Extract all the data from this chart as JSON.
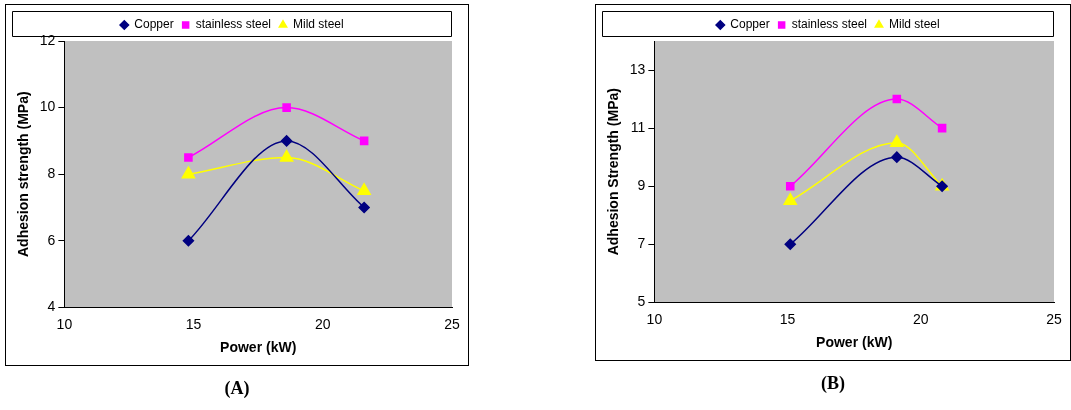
{
  "chart_data": [
    {
      "type": "line",
      "xlabel": "Power (kW)",
      "ylabel": "Adhesion strength (MPa)",
      "annotations": [
        "(A)"
      ],
      "x": [
        14.8,
        18.6,
        21.6
      ],
      "xlim": [
        10,
        25
      ],
      "xticks": [
        10,
        15,
        20,
        25
      ],
      "ylim": [
        4,
        12
      ],
      "yticks": [
        4,
        6,
        8,
        10,
        12
      ],
      "grid": false,
      "legend": "top",
      "series": [
        {
          "name": "Copper",
          "color": "#000080",
          "marker": "diamond",
          "values": [
            6,
            9,
            7
          ]
        },
        {
          "name": "stainless steel",
          "color": "#ff00ff",
          "marker": "square",
          "values": [
            8.5,
            10,
            9
          ]
        },
        {
          "name": "Mild steel",
          "color": "#ffff00",
          "marker": "triangle",
          "values": [
            8,
            8.5,
            7.5
          ]
        }
      ]
    },
    {
      "type": "line",
      "xlabel": "Power (kW)",
      "ylabel": "Adhesion Strength (MPa)",
      "annotations": [
        "(B)"
      ],
      "x": [
        15.1,
        19.1,
        20.8
      ],
      "xlim": [
        10,
        25
      ],
      "xticks": [
        10,
        15,
        20,
        25
      ],
      "ylim": [
        5,
        14
      ],
      "yticks": [
        5,
        7,
        9,
        11,
        13
      ],
      "grid": false,
      "legend": "top",
      "series": [
        {
          "name": "Copper",
          "color": "#000080",
          "marker": "diamond",
          "values": [
            7,
            10,
            9
          ]
        },
        {
          "name": "stainless steel",
          "color": "#ff00ff",
          "marker": "square",
          "values": [
            9,
            12,
            11
          ]
        },
        {
          "name": "Mild steel",
          "color": "#ffff00",
          "marker": "triangle",
          "values": [
            8.5,
            10.5,
            9
          ]
        }
      ]
    }
  ]
}
